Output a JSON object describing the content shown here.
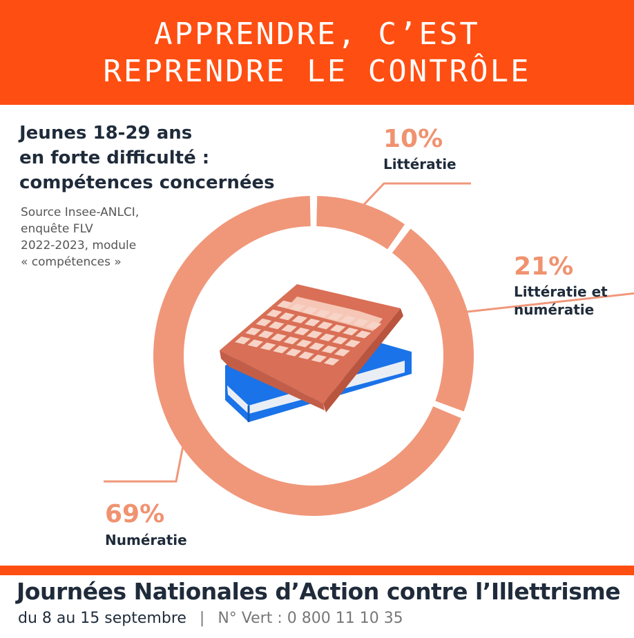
{
  "banner": {
    "line1": "Apprendre, c’est",
    "line2": "reprendre le contrôle"
  },
  "chart_data": {
    "type": "pie",
    "title_lines": [
      "Jeunes 18-29 ans",
      "en forte difficulté :",
      "compétences concernées"
    ],
    "source_lines": [
      "Source Insee-ANLCI,",
      "enquête FLV",
      "2022-2023, module",
      "« compétences »"
    ],
    "slices": [
      {
        "label_lines": [
          "Littératie"
        ],
        "value": 10,
        "value_label": "10%",
        "color": "#f0977a"
      },
      {
        "label_lines": [
          "Littératie et",
          "numératie"
        ],
        "value": 21,
        "value_label": "21%",
        "color": "#f0977a"
      },
      {
        "label_lines": [
          "Numératie"
        ],
        "value": 69,
        "value_label": "69%",
        "color": "#f0977a"
      }
    ]
  },
  "illustration": {
    "icons": [
      "calculator-icon",
      "book-icon"
    ]
  },
  "footer": {
    "title": "Journées Nationales d’Action contre l’Illettrisme",
    "dates": "du 8 au 15 septembre",
    "separator": "|",
    "hotline": "N° Vert : 0 800 11 10 35"
  },
  "colors": {
    "accent": "#ff4e12",
    "slice": "#f0977a",
    "text": "#1f2b3a",
    "book": "#1a73e8"
  }
}
